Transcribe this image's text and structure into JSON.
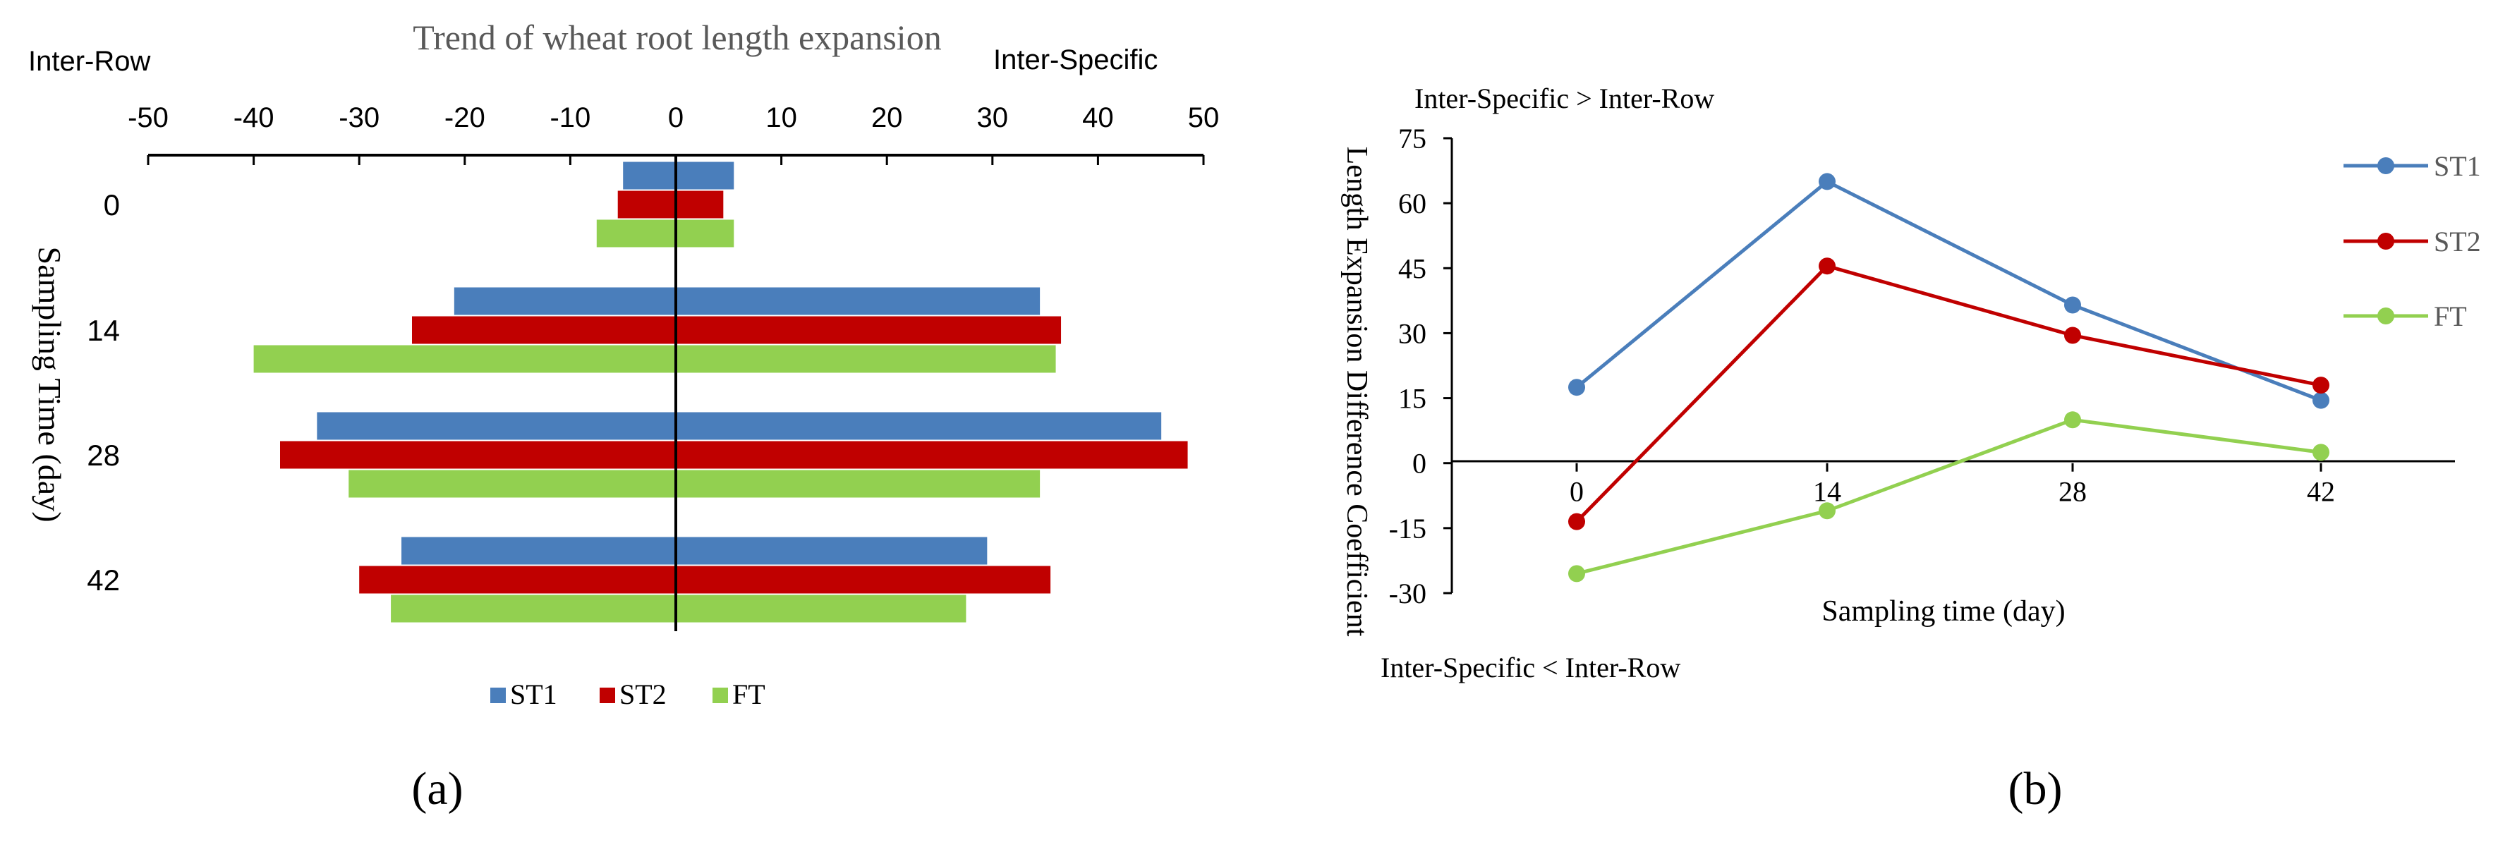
{
  "colors": {
    "ST1": "#4a7ebb",
    "ST2": "#c00000",
    "FT": "#92d050",
    "axis": "#000000",
    "title": "#595959"
  },
  "chart_data": [
    {
      "panel_label": "(a)",
      "type": "bar",
      "orientation": "horizontal",
      "title": "Trend of wheat root length expansion",
      "left_caption": "Inter-Row",
      "right_caption": "Inter-Specific",
      "ylabel": "Sampling Time (day)",
      "xlim": [
        -50,
        50
      ],
      "xticks": [
        "-50",
        "-40",
        "-30",
        "-20",
        "-10",
        "0",
        "10",
        "20",
        "30",
        "40",
        "50"
      ],
      "categories": [
        "0",
        "14",
        "28",
        "42"
      ],
      "legend_position": "bottom",
      "series": [
        {
          "name": "ST1",
          "inter_row": [
            -5,
            -21,
            -34,
            -26
          ],
          "inter_specific": [
            5.5,
            34.5,
            46,
            29.5
          ]
        },
        {
          "name": "ST2",
          "inter_row": [
            -5.5,
            -25,
            -37.5,
            -30
          ],
          "inter_specific": [
            4.5,
            36.5,
            48.5,
            35.5
          ]
        },
        {
          "name": "FT",
          "inter_row": [
            -7.5,
            -40,
            -31,
            -27
          ],
          "inter_specific": [
            5.5,
            36,
            34.5,
            27.5
          ]
        }
      ]
    },
    {
      "panel_label": "(b)",
      "type": "line",
      "title": "",
      "top_caption": "Inter-Specific > Inter-Row",
      "bottom_caption": "Inter-Specific < Inter-Row",
      "xlabel": "Sampling time (day)",
      "ylabel": "Length Expansion Difference Coefficient",
      "ylim": [
        -30,
        75
      ],
      "yticks": [
        "75",
        "60",
        "45",
        "30",
        "15",
        "0",
        "-15",
        "-30"
      ],
      "x": [
        "0",
        "14",
        "28",
        "42"
      ],
      "legend_position": "right",
      "series": [
        {
          "name": "ST1",
          "values": [
            17.5,
            65,
            36.5,
            14.5
          ]
        },
        {
          "name": "ST2",
          "values": [
            -13.5,
            45.5,
            29.5,
            18
          ]
        },
        {
          "name": "FT",
          "values": [
            -25.5,
            -11,
            10,
            2.5
          ]
        }
      ]
    }
  ]
}
